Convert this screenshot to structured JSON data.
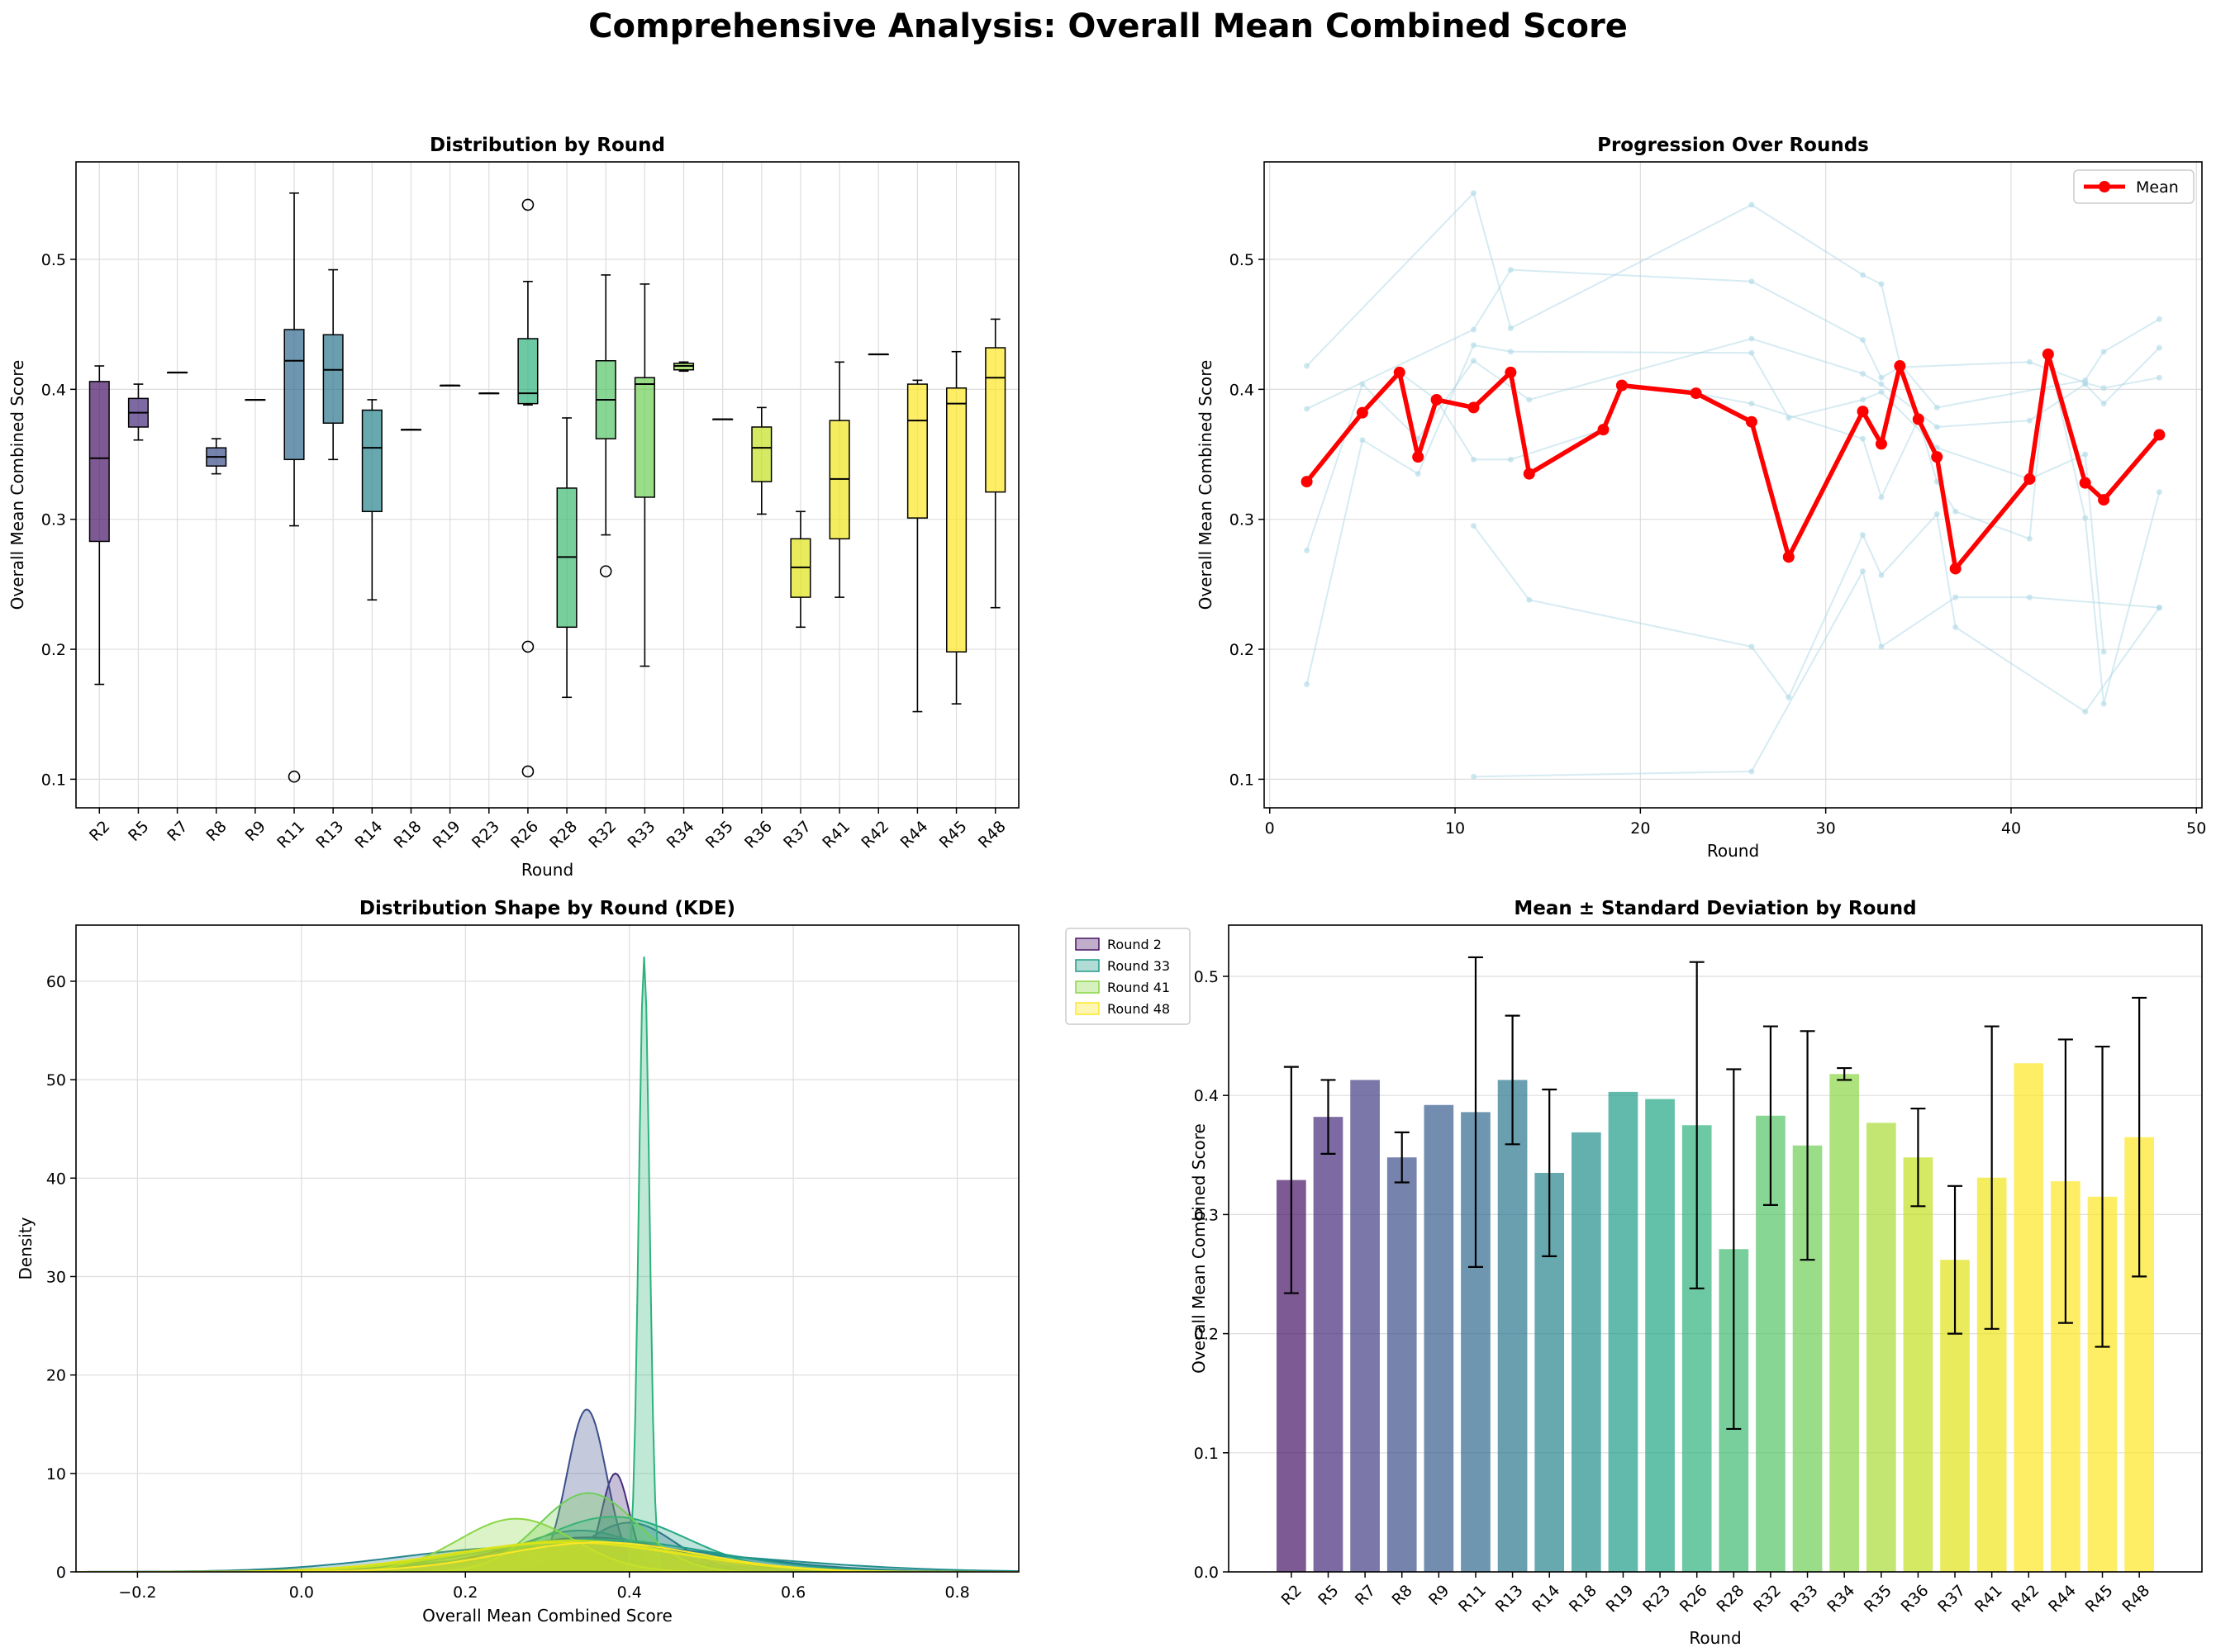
{
  "title": "Comprehensive Analysis: Overall Mean Combined Score",
  "colors": {
    "rounds": [
      "#471466",
      "#472b7a",
      "#433e85",
      "#3c4e8a",
      "#365d8d",
      "#306a8e",
      "#2b768e",
      "#27848d",
      "#228f8c",
      "#1f9c89",
      "#21a784",
      "#2db27c",
      "#3fbb72",
      "#56c567",
      "#6fcf57",
      "#8ad646",
      "#a8db34",
      "#c5e021",
      "#dfe318",
      "#f1e51d",
      "#fde725",
      "#fde725",
      "#fde725",
      "#fde725",
      "#fde725"
    ],
    "mean_line": "#ff0000",
    "individual": "#add8e6",
    "grid": "#dddddd"
  },
  "chart_data": [
    {
      "type": "box",
      "title": "Distribution by Round",
      "xlabel": "Round",
      "ylabel": "Overall Mean Combined Score",
      "ylim": [
        0.078,
        0.575
      ],
      "yticks": [
        "0.1",
        "0.2",
        "0.3",
        "0.4",
        "0.5"
      ],
      "grid": true,
      "categories": [
        "R2",
        "R5",
        "R7",
        "R8",
        "R9",
        "R11",
        "R13",
        "R14",
        "R18",
        "R19",
        "R23",
        "R26",
        "R28",
        "R32",
        "R33",
        "R34",
        "R35",
        "R36",
        "R37",
        "R41",
        "R42",
        "R44",
        "R45",
        "R48"
      ],
      "boxes": [
        {
          "wl": 0.173,
          "q1": 0.283,
          "med": 0.347,
          "q3": 0.406,
          "wh": 0.418,
          "out": []
        },
        {
          "wl": 0.361,
          "q1": 0.371,
          "med": 0.382,
          "q3": 0.393,
          "wh": 0.404,
          "out": []
        },
        {
          "wl": 0.413,
          "q1": 0.413,
          "med": 0.413,
          "q3": 0.413,
          "wh": 0.413,
          "out": []
        },
        {
          "wl": 0.335,
          "q1": 0.341,
          "med": 0.348,
          "q3": 0.355,
          "wh": 0.362,
          "out": []
        },
        {
          "wl": 0.392,
          "q1": 0.392,
          "med": 0.392,
          "q3": 0.392,
          "wh": 0.392,
          "out": []
        },
        {
          "wl": 0.295,
          "q1": 0.346,
          "med": 0.422,
          "q3": 0.446,
          "wh": 0.551,
          "out": [
            0.102
          ]
        },
        {
          "wl": 0.346,
          "q1": 0.374,
          "med": 0.415,
          "q3": 0.442,
          "wh": 0.492,
          "out": []
        },
        {
          "wl": 0.238,
          "q1": 0.306,
          "med": 0.355,
          "q3": 0.384,
          "wh": 0.392,
          "out": []
        },
        {
          "wl": 0.369,
          "q1": 0.369,
          "med": 0.369,
          "q3": 0.369,
          "wh": 0.369,
          "out": []
        },
        {
          "wl": 0.403,
          "q1": 0.403,
          "med": 0.403,
          "q3": 0.403,
          "wh": 0.403,
          "out": []
        },
        {
          "wl": 0.397,
          "q1": 0.397,
          "med": 0.397,
          "q3": 0.397,
          "wh": 0.397,
          "out": []
        },
        {
          "wl": 0.388,
          "q1": 0.389,
          "med": 0.397,
          "q3": 0.439,
          "wh": 0.483,
          "out": [
            0.542,
            0.202,
            0.106
          ]
        },
        {
          "wl": 0.163,
          "q1": 0.217,
          "med": 0.271,
          "q3": 0.324,
          "wh": 0.378,
          "out": []
        },
        {
          "wl": 0.288,
          "q1": 0.362,
          "med": 0.392,
          "q3": 0.422,
          "wh": 0.488,
          "out": [
            0.26
          ]
        },
        {
          "wl": 0.187,
          "q1": 0.317,
          "med": 0.404,
          "q3": 0.409,
          "wh": 0.481,
          "out": []
        },
        {
          "wl": 0.414,
          "q1": 0.415,
          "med": 0.418,
          "q3": 0.42,
          "wh": 0.421,
          "out": []
        },
        {
          "wl": 0.377,
          "q1": 0.377,
          "med": 0.377,
          "q3": 0.377,
          "wh": 0.377,
          "out": []
        },
        {
          "wl": 0.304,
          "q1": 0.329,
          "med": 0.355,
          "q3": 0.371,
          "wh": 0.386,
          "out": []
        },
        {
          "wl": 0.217,
          "q1": 0.24,
          "med": 0.263,
          "q3": 0.285,
          "wh": 0.306,
          "out": []
        },
        {
          "wl": 0.24,
          "q1": 0.285,
          "med": 0.331,
          "q3": 0.376,
          "wh": 0.421,
          "out": []
        },
        {
          "wl": 0.427,
          "q1": 0.427,
          "med": 0.427,
          "q3": 0.427,
          "wh": 0.427,
          "out": []
        },
        {
          "wl": 0.152,
          "q1": 0.301,
          "med": 0.376,
          "q3": 0.404,
          "wh": 0.407,
          "out": []
        },
        {
          "wl": 0.158,
          "q1": 0.198,
          "med": 0.389,
          "q3": 0.401,
          "wh": 0.429,
          "out": []
        },
        {
          "wl": 0.232,
          "q1": 0.321,
          "med": 0.409,
          "q3": 0.432,
          "wh": 0.454,
          "out": []
        }
      ]
    },
    {
      "type": "line",
      "title": "Progression Over Rounds",
      "xlabel": "Round",
      "ylabel": "Overall Mean Combined Score",
      "xlim": [
        -0.3,
        50.3
      ],
      "ylim": [
        0.078,
        0.575
      ],
      "xticks": [
        "0",
        "10",
        "20",
        "30",
        "40",
        "50"
      ],
      "yticks": [
        "0.1",
        "0.2",
        "0.3",
        "0.4",
        "0.5"
      ],
      "legend": {
        "position": "top-right"
      },
      "series": [
        {
          "name": "Mean",
          "x": [
            2,
            5,
            7,
            8,
            9,
            11,
            13,
            14,
            18,
            19,
            23,
            26,
            28,
            32,
            33,
            34,
            35,
            36,
            37,
            41,
            42,
            44,
            45,
            48
          ],
          "y": [
            0.329,
            0.382,
            0.413,
            0.348,
            0.392,
            0.386,
            0.413,
            0.335,
            0.369,
            0.403,
            0.397,
            0.375,
            0.271,
            0.383,
            0.358,
            0.418,
            0.377,
            0.348,
            0.262,
            0.331,
            0.427,
            0.328,
            0.315,
            0.365
          ]
        }
      ],
      "individual_traces": [
        [
          [
            2,
            0.418
          ],
          [
            11,
            0.551
          ],
          [
            13,
            0.447
          ],
          [
            26,
            0.542
          ],
          [
            32,
            0.488
          ],
          [
            33,
            0.481
          ],
          [
            34,
            0.42
          ],
          [
            36,
            0.386
          ],
          [
            44,
            0.407
          ],
          [
            45,
            0.429
          ],
          [
            48,
            0.454
          ]
        ],
        [
          [
            2,
            0.385
          ],
          [
            11,
            0.446
          ],
          [
            13,
            0.492
          ],
          [
            26,
            0.483
          ],
          [
            32,
            0.438
          ],
          [
            33,
            0.409
          ],
          [
            34,
            0.417
          ],
          [
            41,
            0.421
          ],
          [
            44,
            0.405
          ],
          [
            45,
            0.401
          ],
          [
            48,
            0.409
          ]
        ],
        [
          [
            2,
            0.276
          ],
          [
            5,
            0.404
          ],
          [
            8,
            0.362
          ],
          [
            11,
            0.422
          ],
          [
            14,
            0.392
          ],
          [
            26,
            0.439
          ],
          [
            32,
            0.412
          ],
          [
            33,
            0.404
          ],
          [
            36,
            0.371
          ],
          [
            41,
            0.376
          ],
          [
            44,
            0.404
          ],
          [
            45,
            0.389
          ],
          [
            48,
            0.432
          ]
        ],
        [
          [
            2,
            0.173
          ],
          [
            5,
            0.361
          ],
          [
            8,
            0.335
          ],
          [
            11,
            0.434
          ],
          [
            13,
            0.429
          ],
          [
            26,
            0.428
          ],
          [
            28,
            0.378
          ],
          [
            32,
            0.392
          ],
          [
            33,
            0.398
          ],
          [
            36,
            0.355
          ],
          [
            41,
            0.331
          ],
          [
            44,
            0.35
          ],
          [
            45,
            0.198
          ]
        ],
        [
          [
            7,
            0.413
          ],
          [
            9,
            0.392
          ],
          [
            11,
            0.346
          ],
          [
            13,
            0.346
          ],
          [
            18,
            0.369
          ],
          [
            19,
            0.403
          ],
          [
            23,
            0.397
          ],
          [
            26,
            0.389
          ],
          [
            32,
            0.362
          ],
          [
            33,
            0.317
          ],
          [
            35,
            0.377
          ],
          [
            36,
            0.329
          ],
          [
            37,
            0.306
          ],
          [
            41,
            0.285
          ],
          [
            42,
            0.427
          ],
          [
            44,
            0.301
          ],
          [
            45,
            0.158
          ],
          [
            48,
            0.321
          ]
        ],
        [
          [
            11,
            0.295
          ],
          [
            14,
            0.238
          ],
          [
            26,
            0.202
          ],
          [
            28,
            0.163
          ],
          [
            32,
            0.288
          ],
          [
            33,
            0.257
          ],
          [
            36,
            0.304
          ],
          [
            37,
            0.217
          ],
          [
            44,
            0.152
          ],
          [
            48,
            0.232
          ]
        ],
        [
          [
            11,
            0.102
          ],
          [
            26,
            0.106
          ],
          [
            32,
            0.26
          ],
          [
            33,
            0.202
          ],
          [
            37,
            0.24
          ],
          [
            41,
            0.24
          ],
          [
            48,
            0.232
          ]
        ]
      ]
    },
    {
      "type": "area",
      "title": "Distribution Shape by Round (KDE)",
      "xlabel": "Overall Mean Combined Score",
      "ylabel": "Density",
      "xlim": [
        -0.275,
        0.875
      ],
      "ylim": [
        0,
        65.7
      ],
      "xticks": [
        "−0.2",
        "0.0",
        "0.2",
        "0.4",
        "0.6",
        "0.8"
      ],
      "yticks": [
        "0",
        "10",
        "20",
        "30",
        "40",
        "50",
        "60"
      ],
      "legend": {
        "position": "outside-top-right",
        "entries": [
          "Round 2",
          "Round 33",
          "Round 41",
          "Round 48"
        ],
        "colors": [
          "#471466",
          "#1f9c89",
          "#8ad646",
          "#fde725"
        ]
      },
      "kde": [
        {
          "mu": 0.35,
          "sd": 0.11,
          "peak": 3.5,
          "color": "#471466"
        },
        {
          "mu": 0.383,
          "sd": 0.017,
          "peak": 10.0,
          "color": "#472b7a"
        },
        {
          "mu": 0.348,
          "sd": 0.024,
          "peak": 16.5,
          "color": "#3c4e8a"
        },
        {
          "mu": 0.38,
          "sd": 0.15,
          "peak": 2.6,
          "color": "#306a8e"
        },
        {
          "mu": 0.4,
          "sd": 0.055,
          "peak": 5.0,
          "color": "#365d8d"
        },
        {
          "mu": 0.34,
          "sd": 0.08,
          "peak": 4.2,
          "color": "#2b768e"
        },
        {
          "mu": 0.39,
          "sd": 0.19,
          "peak": 2.0,
          "color": "#228f8c"
        },
        {
          "mu": 0.27,
          "sd": 0.15,
          "peak": 2.5,
          "color": "#27848d"
        },
        {
          "mu": 0.38,
          "sd": 0.09,
          "peak": 5.6,
          "color": "#21a784"
        },
        {
          "mu": 0.36,
          "sd": 0.14,
          "peak": 3.3,
          "color": "#1f9c89"
        },
        {
          "mu": 0.418,
          "sd": 0.0065,
          "peak": 62.5,
          "color": "#2db27c"
        },
        {
          "mu": 0.35,
          "sd": 0.06,
          "peak": 8.0,
          "color": "#6fcf57"
        },
        {
          "mu": 0.262,
          "sd": 0.07,
          "peak": 5.4,
          "color": "#8ad646"
        },
        {
          "mu": 0.33,
          "sd": 0.14,
          "peak": 3.0,
          "color": "#a8db34"
        },
        {
          "mu": 0.33,
          "sd": 0.13,
          "peak": 3.2,
          "color": "#c5e021"
        },
        {
          "mu": 0.32,
          "sd": 0.14,
          "peak": 3.0,
          "color": "#dfe318"
        },
        {
          "mu": 0.365,
          "sd": 0.12,
          "peak": 3.0,
          "color": "#fde725"
        }
      ]
    },
    {
      "type": "bar",
      "title": "Mean ± Standard Deviation by Round",
      "xlabel": "Round",
      "ylabel": "Overall Mean Combined Score",
      "ylim": [
        0,
        0.543
      ],
      "yticks": [
        "0.0",
        "0.1",
        "0.2",
        "0.3",
        "0.4",
        "0.5"
      ],
      "categories": [
        "R2",
        "R5",
        "R7",
        "R8",
        "R9",
        "R11",
        "R13",
        "R14",
        "R18",
        "R19",
        "R23",
        "R26",
        "R28",
        "R32",
        "R33",
        "R34",
        "R35",
        "R36",
        "R37",
        "R41",
        "R42",
        "R44",
        "R45",
        "R48"
      ],
      "values": [
        0.329,
        0.382,
        0.413,
        0.348,
        0.392,
        0.386,
        0.413,
        0.335,
        0.369,
        0.403,
        0.397,
        0.375,
        0.271,
        0.383,
        0.358,
        0.418,
        0.377,
        0.348,
        0.262,
        0.331,
        0.427,
        0.328,
        0.315,
        0.365
      ],
      "errors": [
        0.095,
        0.031,
        0,
        0.021,
        0,
        0.13,
        0.054,
        0.07,
        0,
        0,
        0,
        0.137,
        0.151,
        0.075,
        0.096,
        0.005,
        0,
        0.041,
        0.062,
        0.127,
        0,
        0.119,
        0.126,
        0.117
      ]
    }
  ]
}
